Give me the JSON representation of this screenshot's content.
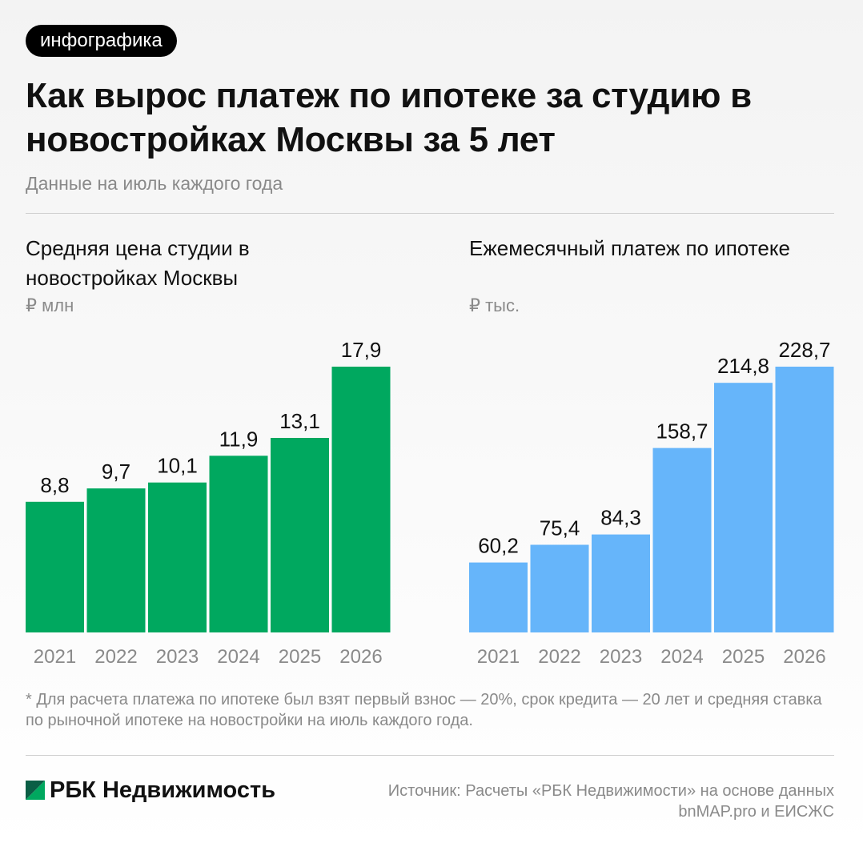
{
  "badge": "инфографика",
  "title": "Как вырос платеж по ипотеке за студию в новостройках Москвы за 5 лет",
  "subtitle": "Данные на июль каждого года",
  "footnote": "* Для расчета платежа по ипотеке был взят первый взнос — 20%, срок кредита — 20 лет и средняя ставка по рыночной ипотеке на новостройки на июль каждого года.",
  "brand": {
    "name": "РБК Недвижимость",
    "logo_icon": "rbc-triangle-logo-icon"
  },
  "source": "Источник: Расчеты «РБК Недвижимости» на основе данных bnMAP.pro и ЕИСЖС",
  "chart_data": [
    {
      "type": "bar",
      "title": "Средняя цена студии в новостройках Москвы",
      "unit": "₽ млн",
      "categories": [
        "2021",
        "2022",
        "2023",
        "2024",
        "2025",
        "2026"
      ],
      "values": [
        8.8,
        9.7,
        10.1,
        11.9,
        13.1,
        17.9
      ],
      "labels": [
        "8,8",
        "9,7",
        "10,1",
        "11,9",
        "13,1",
        "17,9"
      ],
      "color": "#00a85f",
      "ylim": [
        0,
        17.9
      ]
    },
    {
      "type": "bar",
      "title": "Ежемесячный платеж по ипотеке",
      "unit": "₽ тыс.",
      "categories": [
        "2021",
        "2022",
        "2023",
        "2024",
        "2025",
        "2026"
      ],
      "values": [
        60.2,
        75.4,
        84.3,
        158.7,
        214.8,
        228.7
      ],
      "labels": [
        "60,2",
        "75,4",
        "84,3",
        "158,7",
        "214,8",
        "228,7"
      ],
      "color": "#66b5fa",
      "ylim": [
        0,
        228.7
      ]
    }
  ]
}
